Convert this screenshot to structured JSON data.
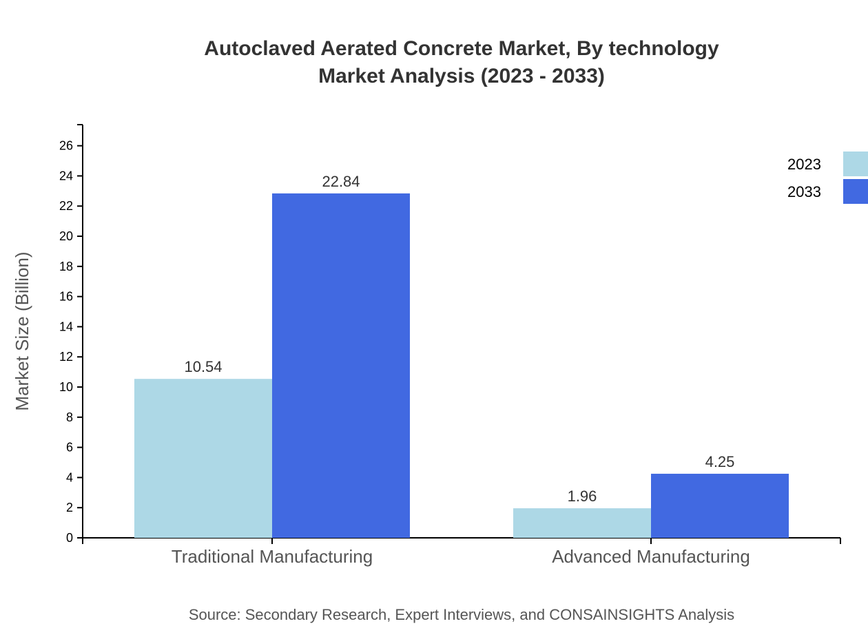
{
  "chart_data": {
    "type": "bar",
    "title": "Autoclaved Aerated Concrete Market, By technology",
    "subtitle": "Market Analysis (2023 - 2033)",
    "ylabel": "Market Size (Billion)",
    "xlabel": "",
    "categories": [
      "Traditional Manufacturing",
      "Advanced Manufacturing"
    ],
    "series": [
      {
        "name": "2023",
        "values": [
          10.54,
          1.96
        ],
        "color": "#add8e6"
      },
      {
        "name": "2033",
        "values": [
          22.84,
          4.25
        ],
        "color": "#4169e1"
      }
    ],
    "ylim": [
      0,
      27.4
    ],
    "yticks": [
      0,
      2,
      4,
      6,
      8,
      10,
      12,
      14,
      16,
      18,
      20,
      22,
      24,
      26
    ],
    "grid": false,
    "legend": "top-right",
    "source": "Source: Secondary Research, Expert Interviews, and CONSAINSIGHTS Analysis"
  }
}
